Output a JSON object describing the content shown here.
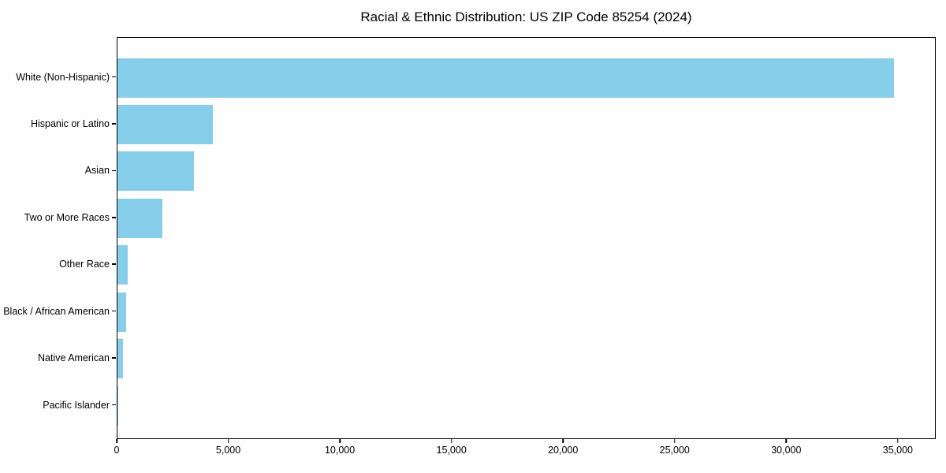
{
  "chart_data": {
    "type": "bar",
    "orientation": "horizontal",
    "title": "Racial & Ethnic Distribution: US ZIP Code 85254 (2024)",
    "categories": [
      "White (Non-Hispanic)",
      "Hispanic or Latino",
      "Asian",
      "Two or More Races",
      "Other Race",
      "Black / African American",
      "Native American",
      "Pacific Islander"
    ],
    "values": [
      34900,
      4270,
      3450,
      2010,
      460,
      400,
      240,
      50
    ],
    "xlabel": "",
    "ylabel": "",
    "xlim": [
      0,
      36700
    ],
    "xticks": [
      0,
      5000,
      10000,
      15000,
      20000,
      25000,
      30000,
      35000
    ],
    "xtick_labels": [
      "0",
      "5,000",
      "10,000",
      "15,000",
      "20,000",
      "25,000",
      "30,000",
      "35,000"
    ],
    "bar_color": "#87CEEB",
    "spine_color": "#000000",
    "background_color": "#ffffff",
    "grid": "off",
    "legend": "none"
  }
}
